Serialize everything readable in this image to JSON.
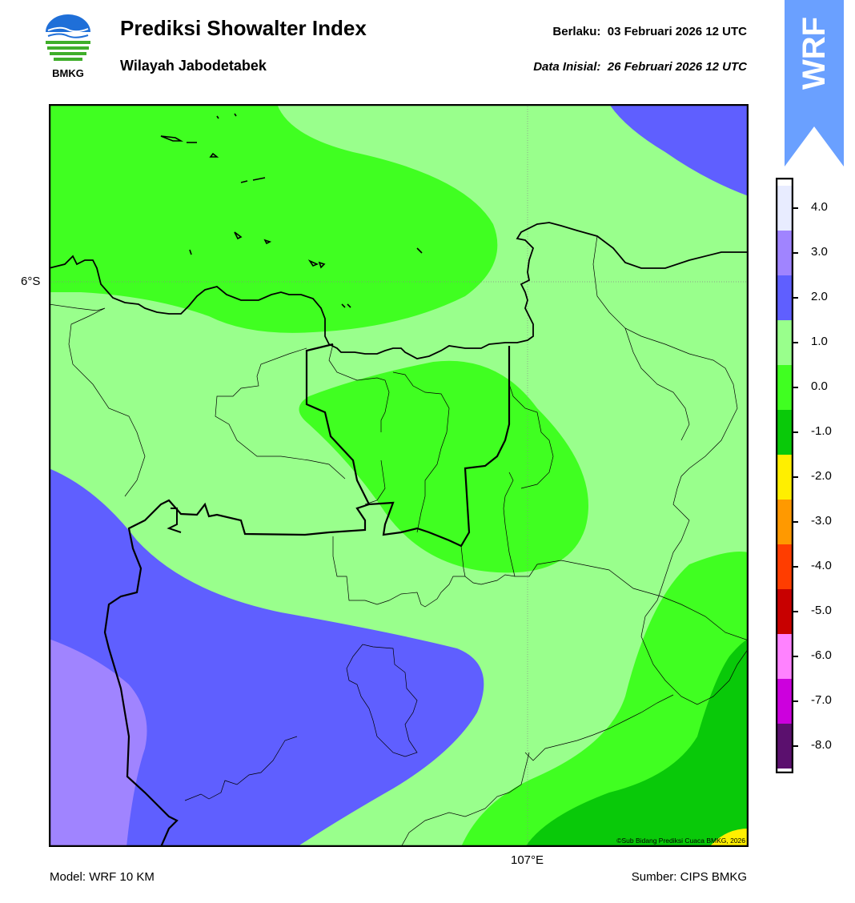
{
  "header": {
    "title": "Prediksi Showalter Index",
    "subtitle": "Wilayah Jabodetabek",
    "valid": "Berlaku:  03 Februari 2026 12 UTC",
    "init": "Data Inisial:  26 Februari 2026 12 UTC"
  },
  "logo": {
    "text": "BMKG",
    "icon": "bmkg-logo-icon"
  },
  "badge": {
    "text": "WRF",
    "color": "#6aa0ff"
  },
  "map": {
    "lat_label": "6°S",
    "lon_label": "107°E",
    "copyright": "©Sub Bidang Prediksi Cuaca BMKG, 2026"
  },
  "footer": {
    "model": "Model: WRF 10 KM",
    "source": "Sumber: CIPS BMKG"
  },
  "colorbar": {
    "labels": [
      "4.0",
      "3.0",
      "2.0",
      "1.0",
      "0.0",
      "-1.0",
      "-2.0",
      "-3.0",
      "-4.0",
      "-5.0",
      "-6.0",
      "-7.0",
      "-8.0"
    ],
    "colors": [
      "#e8ecff",
      "#a084ff",
      "#5f5fff",
      "#99ff8c",
      "#40ff21",
      "#09c909",
      "#ffef00",
      "#ff9900",
      "#ff3d00",
      "#c80000",
      "#ff82ff",
      "#cc00dd",
      "#5b106e"
    ]
  }
}
